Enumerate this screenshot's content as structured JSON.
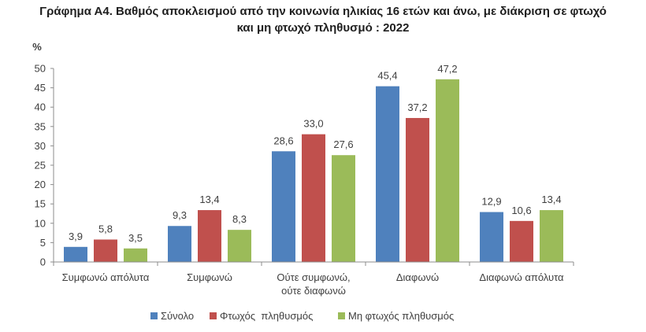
{
  "title_line1": "Γράφημα Α4. Βαθμός αποκλεισμού από την κοινωνία ηλικίας 16 ετών και άνω, με διάκριση σε φτωχό",
  "title_line2": "και μη φτωχό πληθυσμό : 2022",
  "chart_data": {
    "type": "bar",
    "ylabel": "%",
    "ylim": [
      0,
      50
    ],
    "yticks": [
      0,
      5,
      10,
      15,
      20,
      25,
      30,
      35,
      40,
      45,
      50
    ],
    "grid": false,
    "legend_position": "bottom",
    "categories": [
      [
        "Συμφωνώ απόλυτα"
      ],
      [
        "Συμφωνώ"
      ],
      [
        "Ούτε συμφωνώ,",
        "ούτε διαφωνώ"
      ],
      [
        "Διαφωνώ"
      ],
      [
        "Διαφωνώ απόλυτα"
      ]
    ],
    "series": [
      {
        "name": "Σύνολο",
        "color": "#4f81bd",
        "values": [
          3.9,
          9.3,
          28.6,
          45.4,
          12.9
        ],
        "labels": [
          "3,9",
          "9,3",
          "28,6",
          "45,4",
          "12,9"
        ]
      },
      {
        "name": "Φτωχός  πληθυσμός",
        "color": "#c0504d",
        "values": [
          5.8,
          13.4,
          33.0,
          37.2,
          10.6
        ],
        "labels": [
          "5,8",
          "13,4",
          "33,0",
          "37,2",
          "10,6"
        ]
      },
      {
        "name": "Μη φτωχός πληθυσμός",
        "color": "#9bbb59",
        "values": [
          3.5,
          8.3,
          27.6,
          47.2,
          13.4
        ],
        "labels": [
          "3,5",
          "8,3",
          "27,6",
          "47,2",
          "13,4"
        ]
      }
    ]
  }
}
